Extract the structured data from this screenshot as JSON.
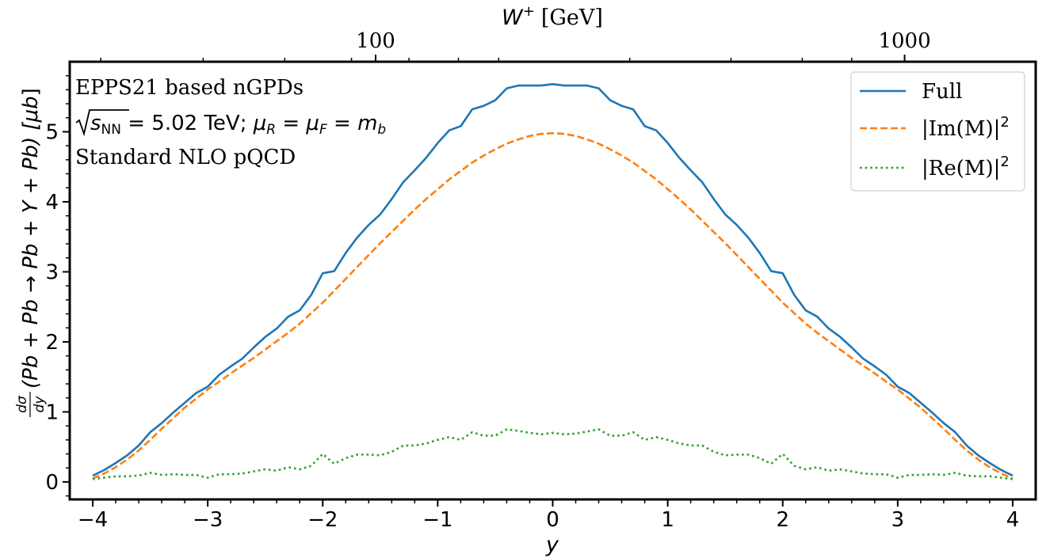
{
  "chart_data": {
    "type": "line",
    "xlabel": "y",
    "ylabel": "dσ/dy(Pb + Pb → Pb + Υ + Pb) [μb]",
    "ylabel_parts": {
      "frac_num": "dσ",
      "frac_den": "dy",
      "expr": "(Pb + Pb → Pb + Υ + Pb) [",
      "unit": "μb",
      "close": "]"
    },
    "xlim": [
      -4.2,
      4.2
    ],
    "ylim": [
      -0.25,
      6.0
    ],
    "x_ticks": [
      -4,
      -3,
      -2,
      -1,
      0,
      1,
      2,
      3,
      4
    ],
    "x_tick_labels": [
      "−4",
      "−3",
      "−2",
      "−1",
      "0",
      "1",
      "2",
      "3",
      "4"
    ],
    "y_ticks": [
      0,
      1,
      2,
      3,
      4,
      5
    ],
    "y_tick_labels": [
      "0",
      "1",
      "2",
      "3",
      "4",
      "5"
    ],
    "top_axis": {
      "label": "W⁺ [GeV]",
      "label_main": "W",
      "label_sup": "+",
      "label_unit": "[GeV]",
      "tick_labels": [
        "100",
        "1000"
      ],
      "major_ticks_at_y": [
        -1.54,
        3.06
      ],
      "minor_ticks_at_y": [
        -3.93,
        -3.04,
        -2.33,
        -1.75,
        -1.25,
        -0.82,
        -0.47,
        0.67,
        1.55,
        2.17,
        2.6
      ]
    },
    "annotations": [
      "EPPS21 based nGPDs",
      "√s_NN = 5.02 TeV; μ_R = μ_F = m_b",
      "Standard NLO pQCD"
    ],
    "annotation_parts": {
      "line2_pre": "s",
      "line2_sub": "NN",
      "line2_mid": " = 5.02 TeV; ",
      "mu": "μ",
      "mu_R": "R",
      "mu_F": "F",
      "eq": " = ",
      "m": "m",
      "m_sub": "b"
    },
    "legend_position": "top-right",
    "series": [
      {
        "name": "Full",
        "name_main": "Full",
        "color": "#1f77b4",
        "style": "solid",
        "x": [
          -4.0,
          -3.9,
          -3.8,
          -3.7,
          -3.6,
          -3.5,
          -3.4,
          -3.3,
          -3.2,
          -3.1,
          -3.0,
          -2.9,
          -2.8,
          -2.7,
          -2.6,
          -2.5,
          -2.4,
          -2.3,
          -2.2,
          -2.1,
          -2.0,
          -1.9,
          -1.8,
          -1.7,
          -1.6,
          -1.5,
          -1.4,
          -1.3,
          -1.2,
          -1.1,
          -1.0,
          -0.9,
          -0.8,
          -0.7,
          -0.6,
          -0.5,
          -0.4,
          -0.3,
          -0.2,
          -0.1,
          0.0,
          0.1,
          0.2,
          0.3,
          0.4,
          0.5,
          0.6,
          0.7,
          0.8,
          0.9,
          1.0,
          1.1,
          1.2,
          1.3,
          1.4,
          1.5,
          1.6,
          1.7,
          1.8,
          1.9,
          2.0,
          2.1,
          2.2,
          2.3,
          2.4,
          2.5,
          2.6,
          2.7,
          2.8,
          2.9,
          3.0,
          3.1,
          3.2,
          3.3,
          3.4,
          3.5,
          3.6,
          3.7,
          3.8,
          3.9,
          4.0
        ],
        "values": [
          0.09,
          0.17,
          0.27,
          0.38,
          0.52,
          0.71,
          0.84,
          0.99,
          1.13,
          1.27,
          1.36,
          1.53,
          1.65,
          1.76,
          1.92,
          2.07,
          2.19,
          2.36,
          2.45,
          2.67,
          2.98,
          3.01,
          3.27,
          3.49,
          3.67,
          3.82,
          4.04,
          4.28,
          4.45,
          4.63,
          4.84,
          5.02,
          5.08,
          5.32,
          5.37,
          5.45,
          5.62,
          5.66,
          5.66,
          5.66,
          5.68,
          5.66,
          5.66,
          5.66,
          5.62,
          5.45,
          5.37,
          5.32,
          5.08,
          5.02,
          4.84,
          4.63,
          4.45,
          4.28,
          4.04,
          3.82,
          3.67,
          3.49,
          3.27,
          3.01,
          2.98,
          2.67,
          2.45,
          2.36,
          2.19,
          2.07,
          1.92,
          1.76,
          1.65,
          1.53,
          1.36,
          1.27,
          1.13,
          0.99,
          0.84,
          0.71,
          0.52,
          0.38,
          0.27,
          0.17,
          0.09
        ]
      },
      {
        "name": "|Im(M)|²",
        "name_main": "|Im(M)|",
        "name_sup": "2",
        "color": "#ff7f0e",
        "style": "dashed",
        "x": [
          -4.0,
          -3.9,
          -3.8,
          -3.7,
          -3.6,
          -3.5,
          -3.4,
          -3.3,
          -3.2,
          -3.1,
          -3.0,
          -2.9,
          -2.8,
          -2.7,
          -2.6,
          -2.5,
          -2.4,
          -2.3,
          -2.2,
          -2.1,
          -2.0,
          -1.9,
          -1.8,
          -1.7,
          -1.6,
          -1.5,
          -1.4,
          -1.3,
          -1.2,
          -1.1,
          -1.0,
          -0.9,
          -0.8,
          -0.7,
          -0.6,
          -0.5,
          -0.4,
          -0.3,
          -0.2,
          -0.1,
          0.0,
          0.1,
          0.2,
          0.3,
          0.4,
          0.5,
          0.6,
          0.7,
          0.8,
          0.9,
          1.0,
          1.1,
          1.2,
          1.3,
          1.4,
          1.5,
          1.6,
          1.7,
          1.8,
          1.9,
          2.0,
          2.1,
          2.2,
          2.3,
          2.4,
          2.5,
          2.6,
          2.7,
          2.8,
          2.9,
          3.0,
          3.1,
          3.2,
          3.3,
          3.4,
          3.5,
          3.6,
          3.7,
          3.8,
          3.9,
          4.0
        ],
        "values": [
          0.05,
          0.12,
          0.21,
          0.32,
          0.45,
          0.6,
          0.76,
          0.91,
          1.06,
          1.19,
          1.32,
          1.43,
          1.55,
          1.66,
          1.77,
          1.89,
          2.01,
          2.13,
          2.26,
          2.41,
          2.56,
          2.73,
          2.9,
          3.07,
          3.24,
          3.41,
          3.57,
          3.73,
          3.89,
          4.04,
          4.18,
          4.32,
          4.44,
          4.56,
          4.66,
          4.75,
          4.83,
          4.89,
          4.94,
          4.97,
          4.98,
          4.97,
          4.94,
          4.89,
          4.83,
          4.75,
          4.66,
          4.56,
          4.44,
          4.32,
          4.18,
          4.04,
          3.89,
          3.73,
          3.57,
          3.41,
          3.24,
          3.07,
          2.9,
          2.73,
          2.56,
          2.41,
          2.26,
          2.13,
          2.01,
          1.89,
          1.77,
          1.66,
          1.55,
          1.43,
          1.32,
          1.19,
          1.06,
          0.91,
          0.76,
          0.6,
          0.45,
          0.32,
          0.21,
          0.12,
          0.05
        ]
      },
      {
        "name": "|Re(M)|²",
        "name_main": "|Re(M)|",
        "name_sup": "2",
        "color": "#2ca02c",
        "style": "dotted",
        "x": [
          -4.0,
          -3.9,
          -3.8,
          -3.7,
          -3.6,
          -3.5,
          -3.4,
          -3.3,
          -3.2,
          -3.1,
          -3.0,
          -2.9,
          -2.8,
          -2.7,
          -2.6,
          -2.5,
          -2.4,
          -2.3,
          -2.2,
          -2.1,
          -2.0,
          -1.9,
          -1.8,
          -1.7,
          -1.6,
          -1.5,
          -1.4,
          -1.3,
          -1.2,
          -1.1,
          -1.0,
          -0.9,
          -0.8,
          -0.7,
          -0.6,
          -0.5,
          -0.4,
          -0.3,
          -0.2,
          -0.1,
          0.0,
          0.1,
          0.2,
          0.3,
          0.4,
          0.5,
          0.6,
          0.7,
          0.8,
          0.9,
          1.0,
          1.1,
          1.2,
          1.3,
          1.4,
          1.5,
          1.6,
          1.7,
          1.8,
          1.9,
          2.0,
          2.1,
          2.2,
          2.3,
          2.4,
          2.5,
          2.6,
          2.7,
          2.8,
          2.9,
          3.0,
          3.1,
          3.2,
          3.3,
          3.4,
          3.5,
          3.6,
          3.7,
          3.8,
          3.9,
          4.0
        ],
        "values": [
          0.04,
          0.06,
          0.08,
          0.08,
          0.09,
          0.13,
          0.1,
          0.11,
          0.1,
          0.1,
          0.06,
          0.11,
          0.11,
          0.12,
          0.15,
          0.18,
          0.16,
          0.21,
          0.18,
          0.23,
          0.4,
          0.26,
          0.34,
          0.39,
          0.39,
          0.38,
          0.43,
          0.52,
          0.52,
          0.55,
          0.6,
          0.64,
          0.6,
          0.71,
          0.66,
          0.66,
          0.75,
          0.73,
          0.7,
          0.68,
          0.7,
          0.68,
          0.69,
          0.72,
          0.75,
          0.66,
          0.66,
          0.71,
          0.6,
          0.64,
          0.6,
          0.55,
          0.52,
          0.52,
          0.43,
          0.38,
          0.39,
          0.39,
          0.34,
          0.26,
          0.4,
          0.23,
          0.18,
          0.21,
          0.16,
          0.18,
          0.15,
          0.12,
          0.11,
          0.11,
          0.06,
          0.1,
          0.1,
          0.11,
          0.1,
          0.13,
          0.09,
          0.08,
          0.08,
          0.06,
          0.04
        ]
      }
    ]
  }
}
